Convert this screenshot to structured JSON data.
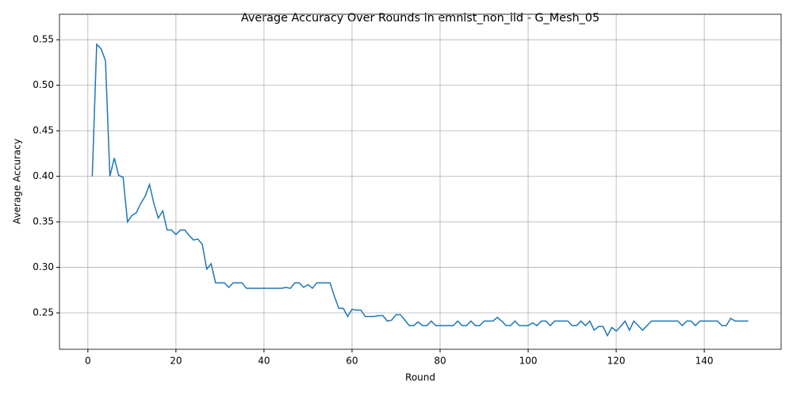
{
  "chart_data": {
    "type": "line",
    "title": "Average Accuracy Over Rounds in emnist_non_iid - G_Mesh_05",
    "xlabel": "Round",
    "ylabel": "Average Accuracy",
    "x": [
      1,
      2,
      3,
      4,
      5,
      6,
      7,
      8,
      9,
      10,
      11,
      12,
      13,
      14,
      15,
      16,
      17,
      18,
      19,
      20,
      21,
      22,
      23,
      24,
      25,
      26,
      27,
      28,
      29,
      30,
      31,
      32,
      33,
      34,
      35,
      36,
      37,
      38,
      39,
      40,
      41,
      42,
      43,
      44,
      45,
      46,
      47,
      48,
      49,
      50,
      51,
      52,
      53,
      54,
      55,
      56,
      57,
      58,
      59,
      60,
      61,
      62,
      63,
      64,
      65,
      66,
      67,
      68,
      69,
      70,
      71,
      72,
      73,
      74,
      75,
      76,
      77,
      78,
      79,
      80,
      81,
      82,
      83,
      84,
      85,
      86,
      87,
      88,
      89,
      90,
      91,
      92,
      93,
      94,
      95,
      96,
      97,
      98,
      99,
      100,
      101,
      102,
      103,
      104,
      105,
      106,
      107,
      108,
      109,
      110,
      111,
      112,
      113,
      114,
      115,
      116,
      117,
      118,
      119,
      120,
      121,
      122,
      123,
      124,
      125,
      126,
      127,
      128,
      129,
      130,
      131,
      132,
      133,
      134,
      135,
      136,
      137,
      138,
      139,
      140,
      141,
      142,
      143,
      144,
      145,
      146,
      147,
      148,
      149,
      150
    ],
    "values": [
      0.4,
      0.545,
      0.54,
      0.527,
      0.4,
      0.42,
      0.401,
      0.399,
      0.35,
      0.357,
      0.36,
      0.37,
      0.378,
      0.391,
      0.37,
      0.354,
      0.362,
      0.341,
      0.341,
      0.336,
      0.341,
      0.341,
      0.335,
      0.33,
      0.331,
      0.325,
      0.298,
      0.304,
      0.283,
      0.283,
      0.283,
      0.278,
      0.283,
      0.283,
      0.283,
      0.277,
      0.277,
      0.277,
      0.277,
      0.277,
      0.277,
      0.277,
      0.277,
      0.277,
      0.278,
      0.277,
      0.283,
      0.283,
      0.278,
      0.281,
      0.277,
      0.283,
      0.283,
      0.283,
      0.283,
      0.268,
      0.255,
      0.255,
      0.246,
      0.254,
      0.253,
      0.253,
      0.246,
      0.246,
      0.246,
      0.247,
      0.247,
      0.241,
      0.242,
      0.248,
      0.248,
      0.242,
      0.236,
      0.236,
      0.24,
      0.236,
      0.236,
      0.241,
      0.236,
      0.236,
      0.236,
      0.236,
      0.236,
      0.241,
      0.236,
      0.236,
      0.241,
      0.236,
      0.236,
      0.241,
      0.241,
      0.241,
      0.245,
      0.241,
      0.236,
      0.236,
      0.241,
      0.236,
      0.236,
      0.236,
      0.239,
      0.236,
      0.241,
      0.241,
      0.236,
      0.241,
      0.241,
      0.241,
      0.241,
      0.236,
      0.236,
      0.241,
      0.236,
      0.241,
      0.231,
      0.235,
      0.235,
      0.225,
      0.234,
      0.23,
      0.235,
      0.241,
      0.231,
      0.241,
      0.236,
      0.231,
      0.236,
      0.241,
      0.241,
      0.241,
      0.241,
      0.241,
      0.241,
      0.241,
      0.236,
      0.241,
      0.241,
      0.236,
      0.241,
      0.241,
      0.241,
      0.241,
      0.241,
      0.236,
      0.236,
      0.244,
      0.241,
      0.241,
      0.241,
      0.241
    ],
    "color": "#1f77b4",
    "xlim": [
      -6.45,
      157.45
    ],
    "ylim": [
      0.21,
      0.578
    ],
    "xticks": [
      0,
      20,
      40,
      60,
      80,
      100,
      120,
      140
    ],
    "yticks": [
      0.25,
      {
        "value": 0.3,
        "label": "0.30"
      },
      0.35,
      {
        "value": 0.4,
        "label": "0.40"
      },
      0.45,
      {
        "value": 0.5,
        "label": "0.50"
      },
      0.55
    ],
    "grid": true
  }
}
